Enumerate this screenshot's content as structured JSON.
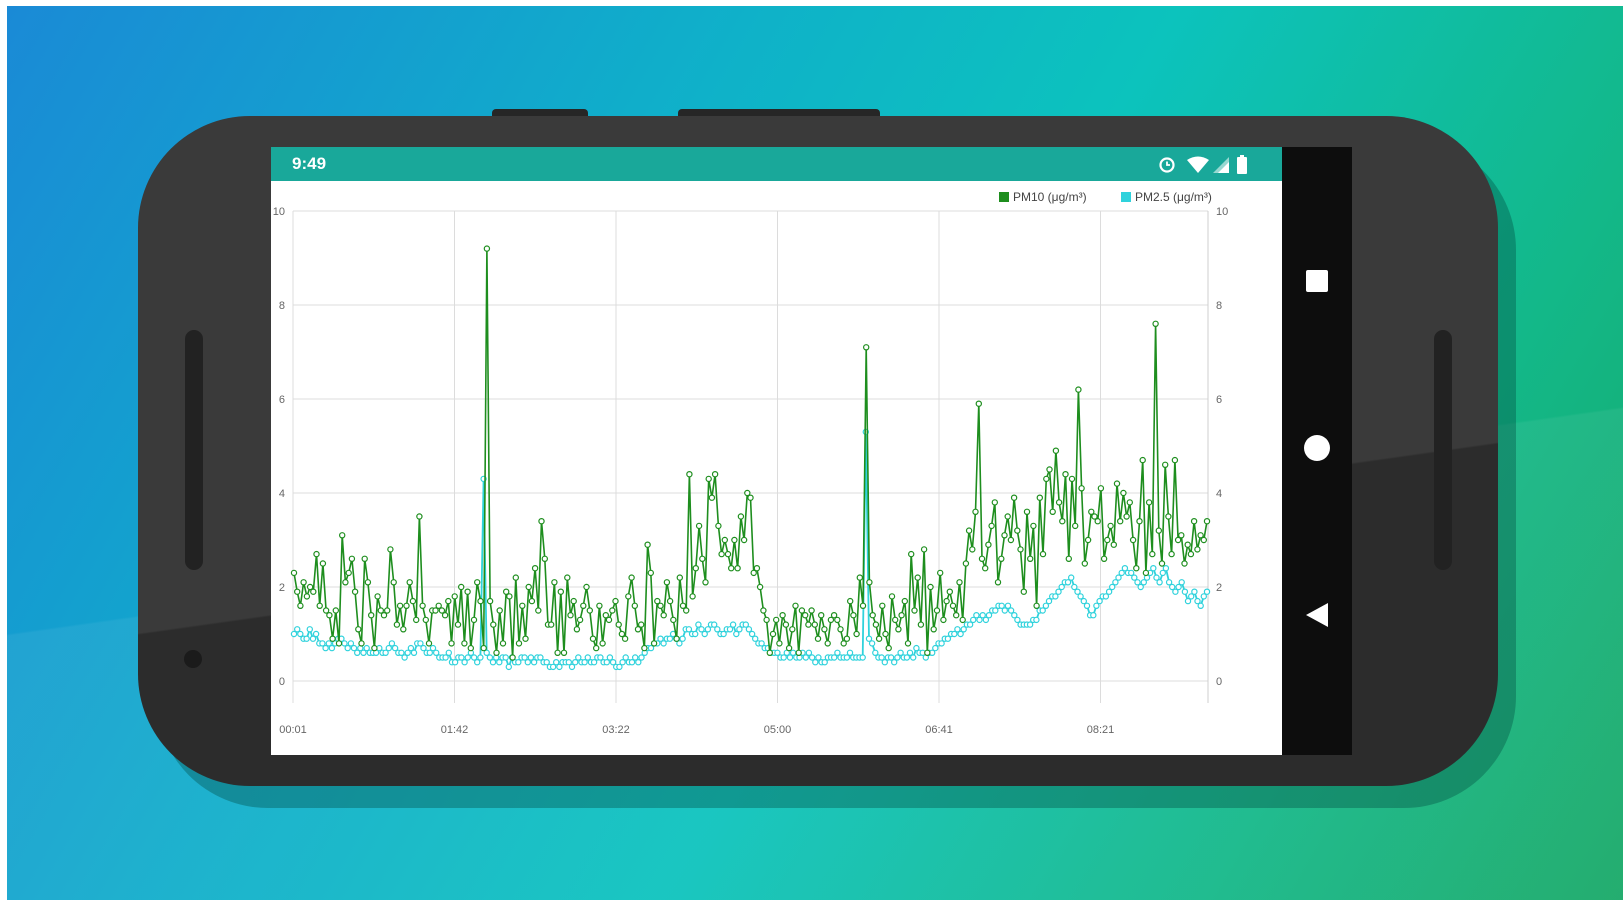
{
  "status_bar": {
    "time": "9:49",
    "icons": [
      "data-saver-icon",
      "wifi-icon",
      "cellular-signal-icon",
      "battery-icon"
    ]
  },
  "nav_bar": {
    "buttons": [
      "recents-square-icon",
      "home-circle-icon",
      "back-triangle-icon"
    ]
  },
  "colors": {
    "background_gradient": [
      "#1a8ad6",
      "#0cc3bd",
      "#17a866"
    ],
    "status_bar": "#19a89a",
    "pm10": "#1e8e1e",
    "pm25": "#2fd2dc",
    "phone_body": "#2f2f2f"
  },
  "chart_data": {
    "type": "line",
    "legend_position": "top-right",
    "grid": true,
    "ylim": [
      0,
      10
    ],
    "y_ticks": [
      "0",
      "2",
      "4",
      "6",
      "8",
      "10"
    ],
    "x_ticks": [
      "00:01",
      "01:42",
      "03:22",
      "05:00",
      "06:41",
      "08:21"
    ],
    "x_range_hours": [
      "00:01",
      "09:32"
    ],
    "series": [
      {
        "name": "PM10 (μg/m³)",
        "color": "#1e8e1e",
        "values": [
          2.3,
          1.9,
          1.6,
          2.1,
          1.8,
          2.0,
          1.9,
          2.7,
          1.6,
          2.5,
          1.5,
          1.4,
          0.9,
          1.5,
          0.8,
          3.1,
          2.1,
          2.3,
          2.6,
          1.9,
          1.1,
          0.8,
          2.6,
          2.1,
          1.4,
          0.7,
          1.8,
          1.5,
          1.4,
          1.5,
          2.8,
          2.1,
          1.2,
          1.6,
          1.1,
          1.6,
          2.1,
          1.7,
          1.3,
          3.5,
          1.6,
          1.3,
          0.8,
          1.5,
          1.5,
          1.6,
          1.5,
          1.4,
          1.7,
          0.8,
          1.8,
          1.2,
          2.0,
          0.8,
          1.9,
          0.7,
          1.3,
          2.1,
          1.7,
          0.7,
          9.2,
          1.7,
          1.2,
          0.6,
          1.5,
          0.8,
          1.9,
          1.8,
          0.5,
          2.2,
          0.8,
          1.6,
          0.9,
          2.0,
          1.7,
          2.4,
          1.5,
          3.4,
          2.6,
          1.2,
          1.2,
          2.1,
          0.6,
          1.9,
          0.6,
          2.2,
          1.4,
          1.7,
          1.1,
          1.3,
          1.6,
          2.0,
          1.5,
          0.9,
          0.7,
          1.6,
          0.8,
          1.4,
          1.3,
          1.5,
          1.7,
          1.2,
          1.0,
          0.9,
          1.8,
          2.2,
          1.6,
          1.1,
          1.2,
          0.7,
          2.9,
          2.3,
          0.8,
          1.7,
          1.6,
          1.4,
          2.1,
          1.7,
          1.3,
          0.9,
          2.2,
          1.6,
          1.5,
          4.4,
          1.8,
          2.4,
          3.3,
          2.6,
          2.1,
          4.3,
          3.9,
          4.4,
          3.3,
          2.7,
          3.0,
          2.7,
          2.4,
          3.0,
          2.4,
          3.5,
          3.0,
          4.0,
          3.9,
          2.3,
          2.4,
          2.0,
          1.5,
          1.3,
          0.6,
          1.0,
          1.3,
          0.8,
          1.4,
          1.2,
          0.7,
          1.1,
          1.6,
          0.6,
          1.5,
          1.4,
          1.2,
          1.5,
          1.2,
          0.9,
          1.4,
          1.1,
          0.8,
          1.3,
          1.4,
          1.3,
          1.1,
          0.8,
          0.9,
          1.7,
          1.4,
          1.0,
          2.2,
          1.6,
          7.1,
          2.1,
          1.4,
          1.2,
          0.9,
          1.6,
          1.0,
          0.7,
          1.8,
          1.3,
          1.1,
          1.4,
          1.7,
          0.8,
          2.7,
          1.5,
          2.2,
          1.2,
          2.8,
          0.6,
          2.0,
          1.1,
          1.5,
          2.3,
          1.3,
          1.7,
          1.9,
          1.6,
          1.4,
          2.1,
          1.3,
          2.5,
          3.2,
          2.8,
          3.6,
          5.9,
          2.6,
          2.4,
          2.9,
          3.3,
          3.8,
          2.1,
          2.6,
          3.1,
          3.5,
          3.0,
          3.9,
          3.2,
          2.8,
          1.9,
          3.6,
          2.6,
          3.3,
          1.6,
          3.9,
          2.7,
          4.3,
          4.5,
          3.6,
          4.9,
          3.8,
          3.4,
          4.4,
          2.6,
          4.3,
          3.3,
          6.2,
          4.1,
          2.5,
          3.0,
          3.6,
          3.5,
          3.4,
          4.1,
          2.6,
          3.0,
          3.3,
          2.9,
          4.2,
          3.4,
          4.0,
          3.5,
          3.8,
          3.0,
          2.4,
          3.4,
          4.7,
          2.3,
          3.8,
          2.7,
          7.6,
          3.2,
          2.5,
          4.6,
          3.5,
          2.7,
          4.7,
          3.0,
          3.1,
          2.5,
          2.9,
          2.7,
          3.4,
          2.8,
          3.1,
          3.0,
          3.4
        ]
      },
      {
        "name": "PM2.5 (μg/m³)",
        "color": "#2fd2dc",
        "values": [
          1.0,
          1.1,
          1.0,
          0.9,
          0.9,
          1.1,
          0.9,
          1.0,
          0.8,
          0.8,
          0.7,
          0.8,
          0.7,
          0.8,
          0.9,
          0.9,
          0.8,
          0.7,
          0.8,
          0.7,
          0.6,
          0.7,
          0.6,
          0.7,
          0.6,
          0.6,
          0.6,
          0.7,
          0.6,
          0.6,
          0.7,
          0.8,
          0.7,
          0.6,
          0.6,
          0.5,
          0.6,
          0.7,
          0.6,
          0.8,
          0.8,
          0.7,
          0.6,
          0.6,
          0.7,
          0.6,
          0.5,
          0.5,
          0.5,
          0.6,
          0.4,
          0.4,
          0.5,
          0.5,
          0.4,
          0.5,
          0.6,
          0.5,
          0.4,
          0.5,
          4.3,
          0.6,
          0.5,
          0.4,
          0.5,
          0.4,
          0.5,
          0.5,
          0.3,
          0.5,
          0.4,
          0.4,
          0.5,
          0.5,
          0.4,
          0.5,
          0.4,
          0.5,
          0.5,
          0.4,
          0.4,
          0.3,
          0.3,
          0.4,
          0.3,
          0.4,
          0.4,
          0.4,
          0.3,
          0.4,
          0.5,
          0.4,
          0.4,
          0.5,
          0.4,
          0.4,
          0.5,
          0.5,
          0.4,
          0.4,
          0.5,
          0.4,
          0.3,
          0.3,
          0.4,
          0.5,
          0.4,
          0.4,
          0.5,
          0.4,
          0.5,
          0.6,
          0.7,
          0.7,
          0.8,
          0.8,
          0.9,
          0.8,
          0.9,
          0.9,
          1.0,
          0.9,
          0.8,
          0.9,
          1.1,
          1.1,
          1.0,
          1.0,
          1.2,
          1.1,
          1.0,
          1.1,
          1.2,
          1.2,
          1.1,
          1.0,
          1.0,
          1.1,
          1.1,
          1.2,
          1.0,
          1.1,
          1.2,
          1.2,
          1.1,
          1.0,
          0.9,
          0.8,
          0.8,
          0.7,
          0.7,
          0.6,
          0.6,
          0.6,
          0.5,
          0.5,
          0.6,
          0.5,
          0.6,
          0.5,
          0.5,
          0.6,
          0.5,
          0.6,
          0.5,
          0.4,
          0.5,
          0.4,
          0.4,
          0.5,
          0.5,
          0.5,
          0.6,
          0.5,
          0.5,
          0.5,
          0.6,
          0.5,
          0.5,
          0.5,
          0.5,
          5.3,
          0.9,
          0.8,
          0.6,
          0.5,
          0.5,
          0.4,
          0.5,
          0.5,
          0.4,
          0.5,
          0.6,
          0.5,
          0.5,
          0.6,
          0.5,
          0.7,
          0.6,
          0.6,
          0.5,
          0.6,
          0.6,
          0.7,
          0.8,
          0.8,
          0.9,
          0.9,
          1.0,
          1.0,
          1.1,
          1.0,
          1.1,
          1.2,
          1.2,
          1.3,
          1.4,
          1.3,
          1.4,
          1.3,
          1.4,
          1.5,
          1.5,
          1.6,
          1.6,
          1.5,
          1.6,
          1.5,
          1.4,
          1.3,
          1.2,
          1.2,
          1.2,
          1.2,
          1.3,
          1.3,
          1.5,
          1.5,
          1.6,
          1.7,
          1.8,
          1.8,
          1.9,
          2.0,
          2.1,
          2.1,
          2.2,
          2.0,
          1.9,
          1.8,
          1.7,
          1.6,
          1.4,
          1.4,
          1.6,
          1.7,
          1.8,
          1.8,
          1.9,
          2.0,
          2.1,
          2.2,
          2.3,
          2.4,
          2.3,
          2.3,
          2.2,
          2.1,
          2.0,
          2.1,
          2.2,
          2.3,
          2.4,
          2.2,
          2.1,
          2.3,
          2.4,
          2.1,
          2.0,
          1.9,
          2.0,
          2.1,
          1.9,
          1.7,
          1.8,
          1.9,
          1.7,
          1.6,
          1.8,
          1.9
        ]
      }
    ]
  }
}
